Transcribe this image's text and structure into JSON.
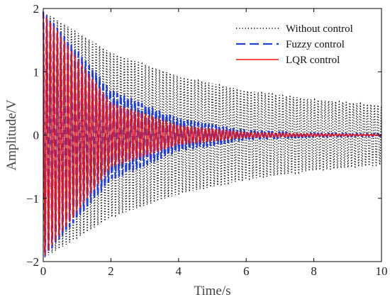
{
  "chart_data": {
    "type": "line",
    "title": "",
    "xlabel": "Time/s",
    "ylabel": "Amplitude/V",
    "xlim": [
      0,
      10
    ],
    "ylim": [
      -2,
      2
    ],
    "x_ticks": [
      "0",
      "2",
      "4",
      "6",
      "8",
      "10"
    ],
    "y_ticks": [
      "2",
      "1",
      "0",
      "−1",
      "−2"
    ],
    "grid": false,
    "legend_position": "top-right",
    "series": [
      {
        "name": "Without control",
        "color": "#000000",
        "style": "dotted",
        "initial_amplitude": 1.95,
        "envelope_time": [
          0,
          2,
          4,
          6,
          8,
          10
        ],
        "envelope_amplitude": [
          1.95,
          1.3,
          0.93,
          0.7,
          0.56,
          0.47
        ]
      },
      {
        "name": "Fuzzy control",
        "color": "#1f3de0",
        "style": "dashed",
        "initial_amplitude": 1.95,
        "envelope_time": [
          0,
          2,
          4,
          6,
          8,
          10
        ],
        "envelope_amplitude": [
          1.95,
          0.7,
          0.25,
          0.07,
          0.03,
          0.02
        ]
      },
      {
        "name": "LQR control",
        "color": "#ee1111",
        "style": "solid",
        "initial_amplitude": 1.93,
        "envelope_time": [
          0,
          2,
          4,
          6,
          8,
          10
        ],
        "envelope_amplitude": [
          1.93,
          0.5,
          0.15,
          0.04,
          0.02,
          0.01
        ]
      }
    ]
  }
}
